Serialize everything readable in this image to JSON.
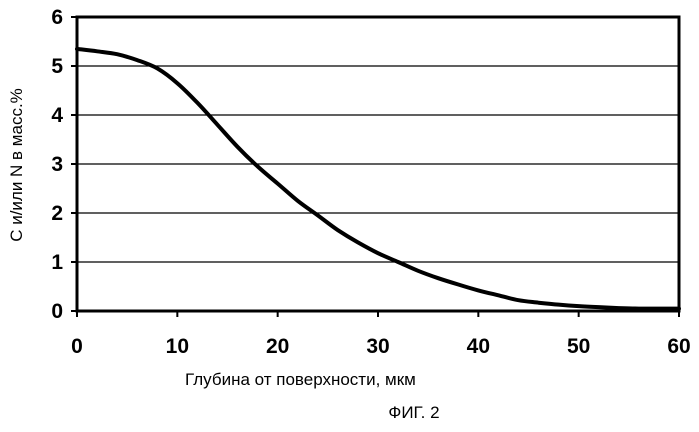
{
  "chart_data": {
    "type": "line",
    "title": "",
    "xlabel": "Глубина от поверхности, мкм",
    "ylabel": "C и/или N в масс.%",
    "xlim": [
      0,
      60
    ],
    "ylim": [
      0,
      6
    ],
    "xticks": [
      0,
      10,
      20,
      30,
      40,
      50,
      60
    ],
    "yticks": [
      0,
      1,
      2,
      3,
      4,
      5,
      6
    ],
    "grid": "horizontal",
    "legend": "none",
    "line_color": "#000000",
    "series": [
      {
        "x": [
          0,
          2,
          4,
          6,
          8,
          10,
          12,
          14,
          16,
          18,
          20,
          22,
          24,
          26,
          28,
          30,
          32,
          34,
          36,
          38,
          40,
          42,
          44,
          46,
          48,
          50,
          52,
          54,
          56,
          58,
          60
        ],
        "y": [
          5.35,
          5.3,
          5.24,
          5.12,
          4.95,
          4.65,
          4.25,
          3.8,
          3.35,
          2.95,
          2.6,
          2.25,
          1.95,
          1.65,
          1.4,
          1.18,
          1.0,
          0.82,
          0.67,
          0.54,
          0.42,
          0.32,
          0.22,
          0.17,
          0.13,
          0.1,
          0.08,
          0.06,
          0.05,
          0.05,
          0.05
        ]
      }
    ]
  },
  "caption": "ФИГ. 2"
}
